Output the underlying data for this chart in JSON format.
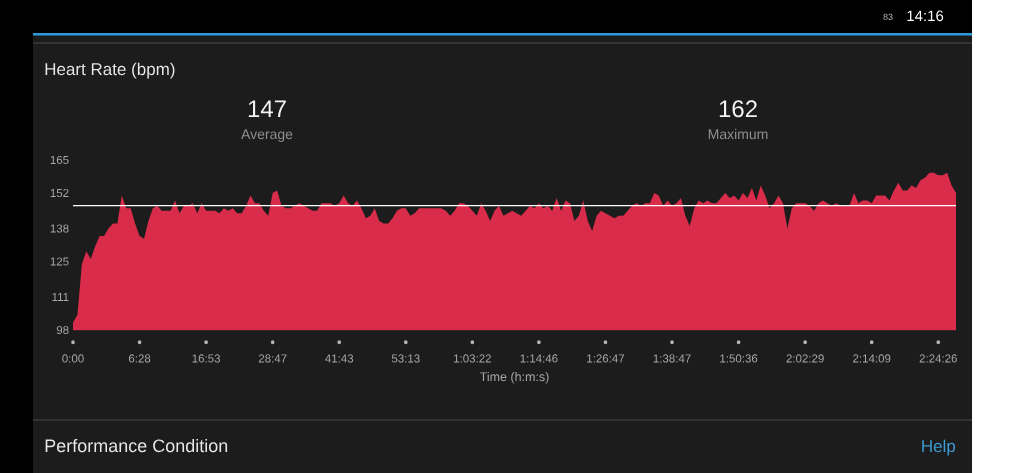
{
  "chart_data": {
    "type": "area",
    "title": "Heart Rate (bpm)",
    "xlabel": "Time (h:m:s)",
    "color": "#d82c4a",
    "ylim": [
      98,
      165
    ],
    "yticks": [
      98,
      111,
      125,
      138,
      152,
      165
    ],
    "categories": [
      "0:00",
      null,
      null,
      null,
      null,
      null,
      null,
      null,
      null,
      null,
      null,
      null,
      null,
      null,
      null,
      "6:28",
      null,
      null,
      null,
      null,
      null,
      null,
      null,
      null,
      null,
      null,
      null,
      null,
      null,
      null,
      "16:53",
      null,
      null,
      null,
      null,
      null,
      null,
      null,
      null,
      null,
      null,
      null,
      null,
      null,
      null,
      "28:47",
      null,
      null,
      null,
      null,
      null,
      null,
      null,
      null,
      null,
      null,
      null,
      null,
      null,
      null,
      "41:43",
      null,
      null,
      null,
      null,
      null,
      null,
      null,
      null,
      null,
      null,
      null,
      null,
      null,
      null,
      "53:13",
      null,
      null,
      null,
      null,
      null,
      null,
      null,
      null,
      null,
      null,
      null,
      null,
      null,
      null,
      "1:03:22",
      null,
      null,
      null,
      null,
      null,
      null,
      null,
      null,
      null,
      null,
      null,
      null,
      null,
      null,
      "1:14:46",
      null,
      null,
      null,
      null,
      null,
      null,
      null,
      null,
      null,
      null,
      null,
      null,
      null,
      null,
      "1:26:47",
      null,
      null,
      null,
      null,
      null,
      null,
      null,
      null,
      null,
      null,
      null,
      null,
      null,
      null,
      "1:38:47",
      null,
      null,
      null,
      null,
      null,
      null,
      null,
      null,
      null,
      null,
      null,
      null,
      null,
      null,
      "1:50:36",
      null,
      null,
      null,
      null,
      null,
      null,
      null,
      null,
      null,
      null,
      null,
      null,
      null,
      null,
      "2:02:29",
      null,
      null,
      null,
      null,
      null,
      null,
      null,
      null,
      null,
      null,
      null,
      null,
      null,
      null,
      "2:14:09",
      null,
      null,
      null,
      null,
      null,
      null,
      null,
      null,
      null,
      null,
      null,
      null,
      null,
      null,
      "2:24:26",
      null,
      null,
      null,
      null
    ],
    "values": [
      101,
      104,
      124,
      129,
      126,
      131,
      135,
      135,
      138,
      140,
      140,
      151,
      146,
      146,
      140,
      135,
      134,
      141,
      146,
      147,
      145,
      145,
      145,
      149,
      144,
      147,
      147,
      148,
      144,
      148,
      145,
      145,
      145,
      144,
      146,
      145,
      146,
      144,
      144,
      147,
      151,
      148,
      148,
      145,
      143,
      152,
      153,
      147,
      146,
      146,
      147,
      148,
      147,
      146,
      145,
      145,
      148,
      148,
      148,
      147,
      148,
      151,
      148,
      147,
      149,
      146,
      142,
      143,
      146,
      141,
      140,
      140,
      142,
      145,
      146,
      146,
      143,
      144,
      146,
      146,
      146,
      146,
      146,
      146,
      145,
      143,
      145,
      148,
      148,
      147,
      145,
      143,
      148,
      145,
      141,
      145,
      147,
      143,
      144,
      145,
      144,
      143,
      145,
      147,
      146,
      148,
      146,
      147,
      145,
      150,
      145,
      149,
      148,
      141,
      143,
      149,
      141,
      137,
      143,
      145,
      144,
      143,
      142,
      143,
      143,
      145,
      147,
      148,
      147,
      148,
      148,
      152,
      151,
      147,
      149,
      147,
      148,
      150,
      143,
      139,
      146,
      149,
      148,
      149,
      148,
      148,
      150,
      152,
      150,
      151,
      149,
      152,
      150,
      154,
      149,
      155,
      151,
      146,
      148,
      151,
      148,
      138,
      146,
      148,
      148,
      148,
      147,
      145,
      148,
      149,
      148,
      147,
      148,
      147,
      147,
      147,
      152,
      148,
      149,
      149,
      148,
      151,
      151,
      151,
      149,
      153,
      156,
      153,
      153,
      155,
      154,
      157,
      158,
      160,
      160,
      159,
      159,
      160,
      155,
      152
    ],
    "ref_lines": [
      {
        "axis": "y",
        "value": 147,
        "color": "#ffffff"
      }
    ],
    "annotations": [
      "147",
      "Average",
      "162",
      "Maximum",
      "Performance Condition",
      "Help",
      "14:16",
      "83"
    ]
  }
}
